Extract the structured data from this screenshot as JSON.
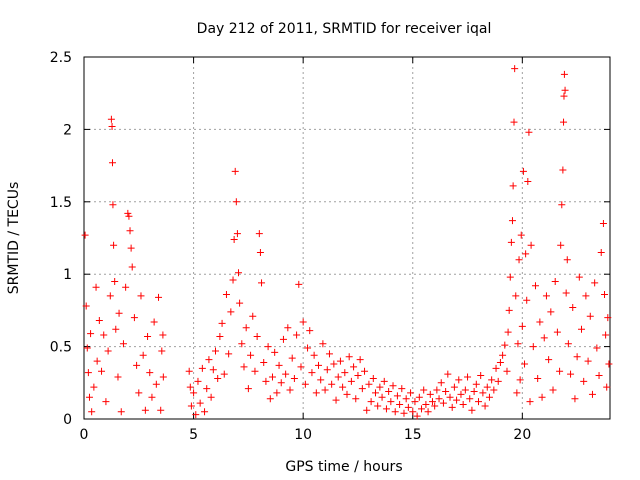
{
  "chart_data": {
    "type": "scatter",
    "title": "Day 212 of 2011, SRMTID for receiver iqal",
    "xlabel": "GPS time / hours",
    "ylabel": "SRMTID / TECUs",
    "xlim": [
      0,
      24
    ],
    "ylim": [
      0,
      2.5
    ],
    "xticks": [
      0,
      5,
      10,
      15,
      20
    ],
    "yticks": [
      0,
      0.5,
      1,
      1.5,
      2,
      2.5
    ],
    "xtick_labels": [
      "0",
      "5",
      "10",
      "15",
      "20"
    ],
    "ytick_labels": [
      "0",
      "0.5",
      "1",
      "1.5",
      "2",
      "2.5"
    ],
    "grid": true,
    "marker": "+",
    "series": [
      {
        "name": "SRMTID",
        "color": "#ff0000",
        "points": [
          [
            0.05,
            1.27
          ],
          [
            0.1,
            0.78
          ],
          [
            0.15,
            0.49
          ],
          [
            0.2,
            0.32
          ],
          [
            0.25,
            0.15
          ],
          [
            0.3,
            0.59
          ],
          [
            0.35,
            0.05
          ],
          [
            0.45,
            0.22
          ],
          [
            0.55,
            0.91
          ],
          [
            0.6,
            0.4
          ],
          [
            0.7,
            0.68
          ],
          [
            0.8,
            0.33
          ],
          [
            0.9,
            0.58
          ],
          [
            1.0,
            0.12
          ],
          [
            1.1,
            0.47
          ],
          [
            1.2,
            0.85
          ],
          [
            1.25,
            2.07
          ],
          [
            1.28,
            2.02
          ],
          [
            1.3,
            1.77
          ],
          [
            1.32,
            1.48
          ],
          [
            1.35,
            1.2
          ],
          [
            1.4,
            0.95
          ],
          [
            1.45,
            0.62
          ],
          [
            1.55,
            0.29
          ],
          [
            1.6,
            0.73
          ],
          [
            1.7,
            0.05
          ],
          [
            1.8,
            0.52
          ],
          [
            1.9,
            0.91
          ],
          [
            2.0,
            1.42
          ],
          [
            2.05,
            1.4
          ],
          [
            2.1,
            1.3
          ],
          [
            2.15,
            1.18
          ],
          [
            2.2,
            1.05
          ],
          [
            2.3,
            0.7
          ],
          [
            2.4,
            0.37
          ],
          [
            2.5,
            0.18
          ],
          [
            2.6,
            0.85
          ],
          [
            2.7,
            0.44
          ],
          [
            2.8,
            0.06
          ],
          [
            2.9,
            0.57
          ],
          [
            3.0,
            0.32
          ],
          [
            3.1,
            0.15
          ],
          [
            3.2,
            0.67
          ],
          [
            3.3,
            0.24
          ],
          [
            3.4,
            0.84
          ],
          [
            3.5,
            0.06
          ],
          [
            3.55,
            0.47
          ],
          [
            3.6,
            0.58
          ],
          [
            3.62,
            0.29
          ],
          [
            4.8,
            0.33
          ],
          [
            4.85,
            0.22
          ],
          [
            4.9,
            0.09
          ],
          [
            5.0,
            0.18
          ],
          [
            5.1,
            0.03
          ],
          [
            5.2,
            0.26
          ],
          [
            5.3,
            0.11
          ],
          [
            5.4,
            0.35
          ],
          [
            5.5,
            0.05
          ],
          [
            5.6,
            0.21
          ],
          [
            5.7,
            0.41
          ],
          [
            5.8,
            0.15
          ],
          [
            5.9,
            0.34
          ],
          [
            6.0,
            0.47
          ],
          [
            6.1,
            0.28
          ],
          [
            6.2,
            0.57
          ],
          [
            6.3,
            0.66
          ],
          [
            6.4,
            0.31
          ],
          [
            6.5,
            0.86
          ],
          [
            6.6,
            0.45
          ],
          [
            6.7,
            0.74
          ],
          [
            6.8,
            0.96
          ],
          [
            6.85,
            1.24
          ],
          [
            6.9,
            1.71
          ],
          [
            6.95,
            1.5
          ],
          [
            7.0,
            1.28
          ],
          [
            7.05,
            1.01
          ],
          [
            7.1,
            0.8
          ],
          [
            7.2,
            0.52
          ],
          [
            7.3,
            0.36
          ],
          [
            7.4,
            0.63
          ],
          [
            7.5,
            0.21
          ],
          [
            7.6,
            0.44
          ],
          [
            7.7,
            0.71
          ],
          [
            7.8,
            0.33
          ],
          [
            7.9,
            0.57
          ],
          [
            8.0,
            1.28
          ],
          [
            8.05,
            1.15
          ],
          [
            8.1,
            0.94
          ],
          [
            8.2,
            0.39
          ],
          [
            8.3,
            0.26
          ],
          [
            8.4,
            0.5
          ],
          [
            8.5,
            0.14
          ],
          [
            8.6,
            0.29
          ],
          [
            8.7,
            0.46
          ],
          [
            8.8,
            0.18
          ],
          [
            8.9,
            0.37
          ],
          [
            9.0,
            0.25
          ],
          [
            9.1,
            0.55
          ],
          [
            9.2,
            0.31
          ],
          [
            9.3,
            0.63
          ],
          [
            9.4,
            0.2
          ],
          [
            9.5,
            0.42
          ],
          [
            9.6,
            0.28
          ],
          [
            9.7,
            0.58
          ],
          [
            9.8,
            0.93
          ],
          [
            9.9,
            0.36
          ],
          [
            10.0,
            0.67
          ],
          [
            10.1,
            0.24
          ],
          [
            10.2,
            0.49
          ],
          [
            10.3,
            0.61
          ],
          [
            10.4,
            0.32
          ],
          [
            10.5,
            0.44
          ],
          [
            10.6,
            0.18
          ],
          [
            10.7,
            0.37
          ],
          [
            10.8,
            0.27
          ],
          [
            10.9,
            0.52
          ],
          [
            11.0,
            0.2
          ],
          [
            11.1,
            0.34
          ],
          [
            11.2,
            0.45
          ],
          [
            11.3,
            0.24
          ],
          [
            11.4,
            0.38
          ],
          [
            11.5,
            0.13
          ],
          [
            11.6,
            0.29
          ],
          [
            11.7,
            0.4
          ],
          [
            11.8,
            0.22
          ],
          [
            11.9,
            0.32
          ],
          [
            12.0,
            0.17
          ],
          [
            12.1,
            0.43
          ],
          [
            12.2,
            0.26
          ],
          [
            12.3,
            0.36
          ],
          [
            12.4,
            0.14
          ],
          [
            12.5,
            0.3
          ],
          [
            12.6,
            0.41
          ],
          [
            12.7,
            0.21
          ],
          [
            12.8,
            0.33
          ],
          [
            12.9,
            0.06
          ],
          [
            13.0,
            0.24
          ],
          [
            13.1,
            0.12
          ],
          [
            13.2,
            0.28
          ],
          [
            13.3,
            0.18
          ],
          [
            13.4,
            0.09
          ],
          [
            13.5,
            0.22
          ],
          [
            13.6,
            0.15
          ],
          [
            13.7,
            0.26
          ],
          [
            13.8,
            0.07
          ],
          [
            13.9,
            0.19
          ],
          [
            14.0,
            0.12
          ],
          [
            14.1,
            0.23
          ],
          [
            14.2,
            0.05
          ],
          [
            14.3,
            0.16
          ],
          [
            14.4,
            0.1
          ],
          [
            14.5,
            0.21
          ],
          [
            14.6,
            0.04
          ],
          [
            14.7,
            0.14
          ],
          [
            14.8,
            0.08
          ],
          [
            14.9,
            0.18
          ],
          [
            15.0,
            0.05
          ],
          [
            15.1,
            0.12
          ],
          [
            15.2,
            0.02
          ],
          [
            15.3,
            0.15
          ],
          [
            15.4,
            0.07
          ],
          [
            15.5,
            0.2
          ],
          [
            15.6,
            0.1
          ],
          [
            15.7,
            0.05
          ],
          [
            15.8,
            0.17
          ],
          [
            15.9,
            0.12
          ],
          [
            16.0,
            0.09
          ],
          [
            16.1,
            0.2
          ],
          [
            16.2,
            0.14
          ],
          [
            16.3,
            0.25
          ],
          [
            16.4,
            0.11
          ],
          [
            16.5,
            0.19
          ],
          [
            16.6,
            0.31
          ],
          [
            16.7,
            0.15
          ],
          [
            16.8,
            0.08
          ],
          [
            16.9,
            0.22
          ],
          [
            17.0,
            0.13
          ],
          [
            17.1,
            0.27
          ],
          [
            17.2,
            0.17
          ],
          [
            17.3,
            0.1
          ],
          [
            17.4,
            0.2
          ],
          [
            17.5,
            0.29
          ],
          [
            17.6,
            0.14
          ],
          [
            17.7,
            0.06
          ],
          [
            17.8,
            0.19
          ],
          [
            17.9,
            0.24
          ],
          [
            18.0,
            0.12
          ],
          [
            18.1,
            0.3
          ],
          [
            18.2,
            0.18
          ],
          [
            18.3,
            0.09
          ],
          [
            18.4,
            0.22
          ],
          [
            18.5,
            0.15
          ],
          [
            18.6,
            0.27
          ],
          [
            18.7,
            0.2
          ],
          [
            18.8,
            0.35
          ],
          [
            18.9,
            0.26
          ],
          [
            19.0,
            0.39
          ],
          [
            19.1,
            0.44
          ],
          [
            19.2,
            0.51
          ],
          [
            19.3,
            0.33
          ],
          [
            19.35,
            0.6
          ],
          [
            19.4,
            0.75
          ],
          [
            19.45,
            0.98
          ],
          [
            19.5,
            1.22
          ],
          [
            19.55,
            1.37
          ],
          [
            19.58,
            1.61
          ],
          [
            19.62,
            2.05
          ],
          [
            19.65,
            2.42
          ],
          [
            19.7,
            0.85
          ],
          [
            19.75,
            0.18
          ],
          [
            19.8,
            0.52
          ],
          [
            19.85,
            1.1
          ],
          [
            19.9,
            0.27
          ],
          [
            19.95,
            1.27
          ],
          [
            20.0,
            0.64
          ],
          [
            20.05,
            1.71
          ],
          [
            20.1,
            0.38
          ],
          [
            20.15,
            1.14
          ],
          [
            20.2,
            0.82
          ],
          [
            20.25,
            1.64
          ],
          [
            20.3,
            1.98
          ],
          [
            20.35,
            0.12
          ],
          [
            20.4,
            1.2
          ],
          [
            20.5,
            0.5
          ],
          [
            20.6,
            0.92
          ],
          [
            20.7,
            0.28
          ],
          [
            20.8,
            0.67
          ],
          [
            20.9,
            0.15
          ],
          [
            21.0,
            0.56
          ],
          [
            21.1,
            0.85
          ],
          [
            21.2,
            0.41
          ],
          [
            21.3,
            0.74
          ],
          [
            21.4,
            0.2
          ],
          [
            21.5,
            0.95
          ],
          [
            21.6,
            0.6
          ],
          [
            21.7,
            0.33
          ],
          [
            21.75,
            1.2
          ],
          [
            21.8,
            1.48
          ],
          [
            21.85,
            1.72
          ],
          [
            21.88,
            2.05
          ],
          [
            21.9,
            2.23
          ],
          [
            21.92,
            2.38
          ],
          [
            21.95,
            2.27
          ],
          [
            22.0,
            0.87
          ],
          [
            22.05,
            1.1
          ],
          [
            22.1,
            0.52
          ],
          [
            22.2,
            0.31
          ],
          [
            22.3,
            0.77
          ],
          [
            22.4,
            0.14
          ],
          [
            22.5,
            0.43
          ],
          [
            22.6,
            0.98
          ],
          [
            22.7,
            0.62
          ],
          [
            22.8,
            0.26
          ],
          [
            22.9,
            0.85
          ],
          [
            23.0,
            0.4
          ],
          [
            23.1,
            0.71
          ],
          [
            23.2,
            0.17
          ],
          [
            23.3,
            0.94
          ],
          [
            23.4,
            0.49
          ],
          [
            23.5,
            0.3
          ],
          [
            23.6,
            1.15
          ],
          [
            23.7,
            1.35
          ],
          [
            23.75,
            0.86
          ],
          [
            23.8,
            0.58
          ],
          [
            23.85,
            0.22
          ],
          [
            23.9,
            0.7
          ],
          [
            23.95,
            0.38
          ]
        ]
      }
    ]
  }
}
